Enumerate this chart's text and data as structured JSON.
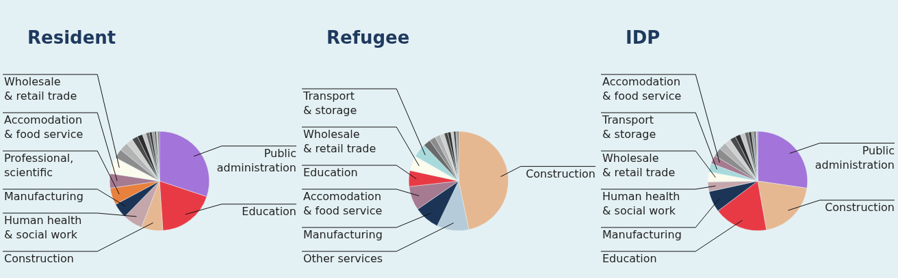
{
  "chart_data": [
    {
      "type": "pie",
      "title": "Resident",
      "legend": false,
      "categories": [
        "Public administration",
        "Education",
        "Construction",
        "Human health & social work",
        "Manufacturing",
        "Professional, scientific",
        "Accomodation & food service",
        "Wholesale & retail trade",
        null,
        null,
        null,
        null,
        null,
        null,
        null,
        null,
        null,
        null,
        null,
        null
      ],
      "values": [
        30.1,
        18.8,
        7,
        6.4,
        4.9,
        5.5,
        4.7,
        5.4,
        3.0,
        2.8,
        2.2,
        1.9,
        1.7,
        1.2,
        1.1,
        0.9,
        0.8,
        0.6,
        0.5,
        0.5
      ],
      "colors": [
        "#a374d9",
        "#e83a45",
        "#e6b891",
        "#c4a6ab",
        "#1c3557",
        "#e8803e",
        "#a67a90",
        "#fbfbee",
        "#8c8c8c",
        "#b3b3b3",
        "#d0d0d0",
        "#4a4a4a",
        "#2e2e2e",
        "#c8c8c8",
        "#6a6a6a",
        "#3a3a3a",
        "#9a9a9a",
        "#555555",
        "#bdbdbd",
        "#777777"
      ]
    },
    {
      "type": "pie",
      "title": "Refugee",
      "legend": false,
      "categories": [
        "Construction",
        "Other services",
        "Manufacturing",
        "Accomodation & food service",
        "Education",
        "Wholesale & retail trade",
        "Transport & storage",
        null,
        null,
        null,
        null,
        null,
        null,
        null,
        null,
        null,
        null
      ],
      "values": [
        46.7,
        10.4,
        8.3,
        7.8,
        5.2,
        4.9,
        4.5,
        2.4,
        2.0,
        1.7,
        1.4,
        1.2,
        1.0,
        0.9,
        0.7,
        0.5,
        0.4
      ],
      "colors": [
        "#e6b891",
        "#b5cbd9",
        "#1c3557",
        "#a67a90",
        "#e83a45",
        "#fbfbee",
        "#a8dadc",
        "#6a6a6a",
        "#8c8c8c",
        "#b3b3b3",
        "#d0d0d0",
        "#4a4a4a",
        "#2e2e2e",
        "#c8c8c8",
        "#3a3a3a",
        "#9a9a9a",
        "#555555"
      ]
    },
    {
      "type": "pie",
      "title": "IDP",
      "legend": false,
      "categories": [
        "Public administration",
        "Construction",
        "Education",
        "Manufacturing",
        "Human health & social work",
        "Wholesale & retail trade",
        "Transport & storage",
        "Accomodation & food service",
        null,
        null,
        null,
        null,
        null,
        null,
        null,
        null,
        null,
        null,
        null,
        null
      ],
      "values": [
        27.3,
        19.9,
        17.5,
        6.9,
        3.1,
        3.3,
        2.8,
        2.7,
        2.8,
        2.4,
        2.0,
        1.9,
        1.7,
        1.5,
        1.2,
        1.0,
        0.8,
        0.6,
        0.4,
        0.2
      ],
      "colors": [
        "#a374d9",
        "#e6b891",
        "#e83a45",
        "#1c3557",
        "#c4a6ab",
        "#fbfbee",
        "#a8dadc",
        "#a67a90",
        "#8c8c8c",
        "#b3b3b3",
        "#d0d0d0",
        "#4a4a4a",
        "#2e2e2e",
        "#c8c8c8",
        "#6a6a6a",
        "#3a3a3a",
        "#9a9a9a",
        "#555555",
        "#bdbdbd",
        "#777777"
      ]
    }
  ]
}
